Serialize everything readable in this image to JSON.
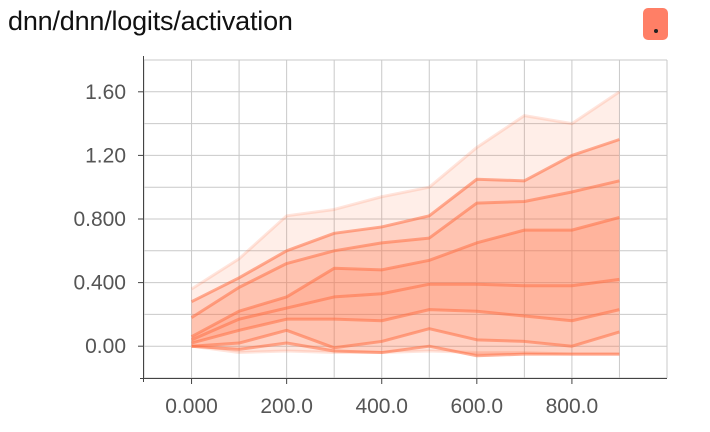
{
  "header": {
    "title": "dnn/dnn/logits/activation"
  },
  "colors": {
    "accent": "#ff7f66",
    "band": "#ff7043",
    "grid": "#c9c9c9",
    "text": "#555555"
  },
  "chart_data": {
    "type": "area",
    "title": "dnn/dnn/logits/activation",
    "xlabel": "",
    "ylabel": "",
    "xlim": [
      -100,
      1000
    ],
    "ylim": [
      -0.2,
      1.8
    ],
    "x_ticks": [
      {
        "value": 0,
        "label": "0.000"
      },
      {
        "value": 200,
        "label": "200.0"
      },
      {
        "value": 400,
        "label": "400.0"
      },
      {
        "value": 600,
        "label": "600.0"
      },
      {
        "value": 800,
        "label": "800.0"
      }
    ],
    "y_ticks": [
      {
        "value": 0,
        "label": "0.00"
      },
      {
        "value": 0.4,
        "label": "0.400"
      },
      {
        "value": 0.8,
        "label": "0.800"
      },
      {
        "value": 1.2,
        "label": "1.20"
      },
      {
        "value": 1.6,
        "label": "1.60"
      }
    ],
    "grid": true,
    "x": [
      0,
      100,
      200,
      300,
      400,
      500,
      600,
      700,
      800,
      900
    ],
    "series": [
      {
        "values": [
          0.0,
          -0.04,
          -0.03,
          -0.04,
          -0.04,
          -0.03,
          -0.04,
          -0.04,
          -0.05,
          -0.05
        ]
      },
      {
        "values": [
          0.0,
          -0.02,
          0.02,
          -0.03,
          -0.04,
          0.0,
          -0.06,
          -0.05,
          -0.05,
          -0.05
        ]
      },
      {
        "values": [
          0.0,
          0.02,
          0.1,
          -0.01,
          0.03,
          0.11,
          0.04,
          0.03,
          0.0,
          0.09
        ]
      },
      {
        "values": [
          0.02,
          0.1,
          0.17,
          0.17,
          0.16,
          0.23,
          0.22,
          0.19,
          0.16,
          0.23
        ]
      },
      {
        "values": [
          0.04,
          0.17,
          0.24,
          0.31,
          0.33,
          0.39,
          0.39,
          0.38,
          0.38,
          0.42
        ]
      },
      {
        "values": [
          0.06,
          0.22,
          0.31,
          0.49,
          0.48,
          0.54,
          0.65,
          0.73,
          0.73,
          0.81
        ]
      },
      {
        "values": [
          0.18,
          0.37,
          0.52,
          0.6,
          0.65,
          0.68,
          0.9,
          0.91,
          0.97,
          1.04
        ]
      },
      {
        "values": [
          0.28,
          0.43,
          0.6,
          0.71,
          0.75,
          0.82,
          1.05,
          1.04,
          1.2,
          1.3
        ]
      },
      {
        "values": [
          0.36,
          0.55,
          0.82,
          0.86,
          0.94,
          1.0,
          1.25,
          1.45,
          1.4,
          1.6
        ]
      }
    ]
  }
}
